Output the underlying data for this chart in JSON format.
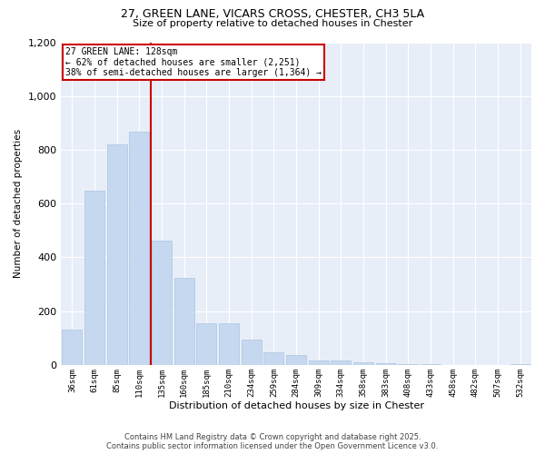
{
  "title_line1": "27, GREEN LANE, VICARS CROSS, CHESTER, CH3 5LA",
  "title_line2": "Size of property relative to detached houses in Chester",
  "xlabel": "Distribution of detached houses by size in Chester",
  "ylabel": "Number of detached properties",
  "bar_color": "#c5d8f0",
  "bar_edge_color": "#aac4e0",
  "categories": [
    "36sqm",
    "61sqm",
    "85sqm",
    "110sqm",
    "135sqm",
    "160sqm",
    "185sqm",
    "210sqm",
    "234sqm",
    "259sqm",
    "284sqm",
    "309sqm",
    "334sqm",
    "358sqm",
    "383sqm",
    "408sqm",
    "433sqm",
    "458sqm",
    "482sqm",
    "507sqm",
    "532sqm"
  ],
  "values": [
    130,
    648,
    820,
    868,
    462,
    323,
    155,
    155,
    95,
    48,
    37,
    15,
    15,
    10,
    5,
    3,
    2,
    1,
    1,
    0,
    2
  ],
  "ylim": [
    0,
    1200
  ],
  "yticks": [
    0,
    200,
    400,
    600,
    800,
    1000,
    1200
  ],
  "property_sqm_label": "27 GREEN LANE: 128sqm",
  "annotation_line1": "← 62% of detached houses are smaller (2,251)",
  "annotation_line2": "38% of semi-detached houses are larger (1,364) →",
  "vline_color": "#cc0000",
  "annotation_box_color": "#cc0000",
  "annotation_bg": "#ffffff",
  "plot_bg_color": "#e8eef8",
  "footer_line1": "Contains HM Land Registry data © Crown copyright and database right 2025.",
  "footer_line2": "Contains public sector information licensed under the Open Government Licence v3.0."
}
